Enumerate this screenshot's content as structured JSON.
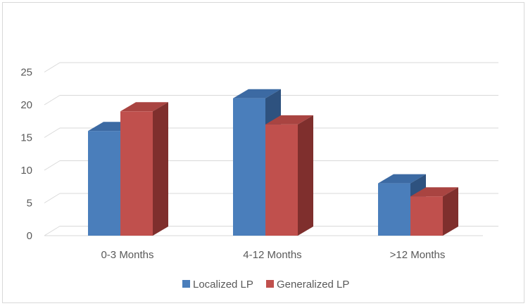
{
  "chart_data": {
    "type": "bar",
    "style": "3d-clustered-column",
    "categories": [
      "0-3 Months",
      "4-12 Months",
      ">12 Months"
    ],
    "series": [
      {
        "name": "Localized LP",
        "values": [
          16,
          21,
          8
        ],
        "color": "#4a7ebb",
        "top_color": "#3c6aa3",
        "side_color": "#2e527f"
      },
      {
        "name": "Generalized LP",
        "values": [
          19,
          17,
          6
        ],
        "color": "#c0504d",
        "top_color": "#a94441",
        "side_color": "#7f2f2d"
      }
    ],
    "yticks": [
      "0",
      "5",
      "10",
      "15",
      "20",
      "25"
    ],
    "ylim": [
      0,
      25
    ],
    "grid": true,
    "legend_position": "bottom"
  }
}
